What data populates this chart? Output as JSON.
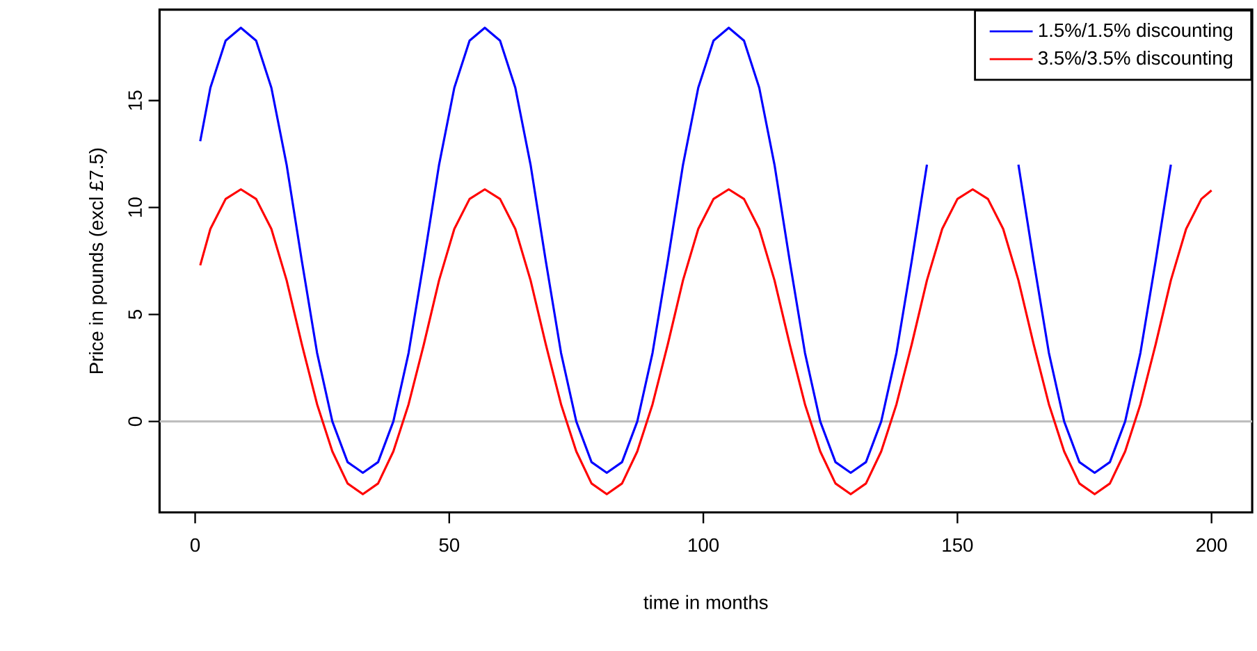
{
  "chart_data": {
    "type": "line",
    "xlabel": "time in months",
    "ylabel": "Price in pounds (excl £7.5)",
    "x": [
      1,
      3,
      6,
      9,
      12,
      15,
      18,
      21,
      24,
      27,
      30,
      33,
      36,
      39,
      42,
      45,
      48,
      51,
      54,
      57,
      60,
      63,
      66,
      69,
      72,
      75,
      78,
      81,
      84,
      87,
      90,
      93,
      96,
      99,
      102,
      105,
      108,
      111,
      114,
      117,
      120,
      123,
      126,
      129,
      132,
      135,
      138,
      141,
      144,
      147,
      150,
      153,
      156,
      159,
      162,
      165,
      168,
      171,
      174,
      177,
      180,
      183,
      186,
      189,
      192,
      195,
      198,
      200
    ],
    "series": [
      {
        "name": "1.5%/1.5% discounting",
        "color": "#0000ff",
        "values": [
          13.1,
          15.6,
          17.8,
          18.4,
          17.8,
          15.6,
          12.0,
          7.5,
          3.2,
          0.0,
          -1.9,
          -2.4,
          -1.9,
          0.0,
          3.2,
          7.5,
          12.0,
          15.6,
          17.8,
          18.4,
          17.8,
          15.6,
          12.0,
          7.5,
          3.2,
          0.0,
          -1.9,
          -2.4,
          -1.9,
          0.0,
          3.2,
          7.5,
          12.0,
          15.6,
          17.8,
          18.4,
          17.8,
          15.6,
          12.0,
          7.5,
          3.2,
          0.0,
          -1.9,
          -2.4,
          -1.9,
          0.0,
          3.2,
          7.5,
          12.0,
          null,
          null,
          null,
          null,
          null,
          12.0,
          7.5,
          3.2,
          0.0,
          -1.9,
          -2.4,
          -1.9,
          0.0,
          3.2,
          7.5,
          12.0,
          null,
          null,
          null
        ]
      },
      {
        "name": "3.5%/3.5% discounting",
        "color": "#ff0000",
        "values": [
          7.3,
          9.0,
          10.4,
          10.85,
          10.4,
          9.0,
          6.6,
          3.6,
          0.8,
          -1.4,
          -2.9,
          -3.4,
          -2.9,
          -1.4,
          0.8,
          3.6,
          6.6,
          9.0,
          10.4,
          10.85,
          10.4,
          9.0,
          6.6,
          3.6,
          0.8,
          -1.4,
          -2.9,
          -3.4,
          -2.9,
          -1.4,
          0.8,
          3.6,
          6.6,
          9.0,
          10.4,
          10.85,
          10.4,
          9.0,
          6.6,
          3.6,
          0.8,
          -1.4,
          -2.9,
          -3.4,
          -2.9,
          -1.4,
          0.8,
          3.6,
          6.6,
          9.0,
          10.4,
          10.85,
          10.4,
          9.0,
          6.6,
          3.6,
          0.8,
          -1.4,
          -2.9,
          -3.4,
          -2.9,
          -1.4,
          0.8,
          3.6,
          6.6,
          9.0,
          10.4,
          10.8
        ]
      }
    ],
    "xlim": [
      -7,
      208
    ],
    "ylim": [
      -4.25,
      19.25
    ],
    "xticks": [
      0,
      50,
      100,
      150,
      200
    ],
    "yticks": [
      0,
      5,
      10,
      15
    ],
    "ref_lines": [
      {
        "axis": "y",
        "value": 0,
        "color": "#bebebe"
      }
    ],
    "grid": false,
    "legend": "top right",
    "marker": "none",
    "line_style": "solid"
  }
}
